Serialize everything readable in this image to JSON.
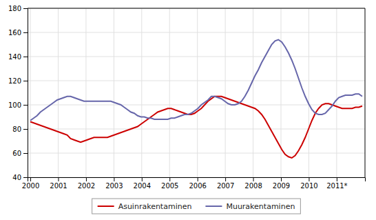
{
  "chart_data": {
    "type": "line",
    "x": [
      2000,
      2000.1204,
      2000.2407,
      2000.3611,
      2000.4815,
      2000.6019,
      2000.7222,
      2000.8426,
      2000.963,
      2001.0834,
      2001.2037,
      2001.3241,
      2001.4445,
      2001.5649,
      2001.6852,
      2001.8056,
      2001.926,
      2002.0464,
      2002.1667,
      2002.2871,
      2002.4075,
      2002.5278,
      2002.6482,
      2002.7686,
      2002.889,
      2003.0093,
      2003.1297,
      2003.2501,
      2003.3705,
      2003.4908,
      2003.6112,
      2003.7316,
      2003.852,
      2003.9723,
      2004.0927,
      2004.2131,
      2004.3335,
      2004.4538,
      2004.5742,
      2004.6946,
      2004.8149,
      2004.9353,
      2005.0557,
      2005.1761,
      2005.2964,
      2005.4168,
      2005.5372,
      2005.6576,
      2005.7779,
      2005.8983,
      2006.0187,
      2006.1391,
      2006.2594,
      2006.3798,
      2006.5002,
      2006.6206,
      2006.7409,
      2006.8613,
      2006.9817,
      2007.1021,
      2007.2224,
      2007.3428,
      2007.4632,
      2007.5835,
      2007.7039,
      2007.8243,
      2007.9447,
      2008.065,
      2008.1854,
      2008.3058,
      2008.4262,
      2008.5465,
      2008.6669,
      2008.7873,
      2008.9077,
      2009.028,
      2009.1484,
      2009.2688,
      2009.3892,
      2009.5095,
      2009.6299,
      2009.7503,
      2009.8706,
      2009.991,
      2010.1114,
      2010.2318,
      2010.3521,
      2010.4725,
      2010.5929,
      2010.7133,
      2010.8336,
      2010.954,
      2011.0744,
      2011.1948,
      2011.3151,
      2011.4355,
      2011.5559,
      2011.6763,
      2011.7966,
      2011.917
    ],
    "series": [
      {
        "name": "Asuinrakentaminen",
        "color": "#cc0000",
        "values": [
          86,
          85,
          84,
          83,
          82,
          81,
          80,
          79,
          78,
          77,
          76,
          75,
          72,
          71,
          70,
          69,
          70,
          71,
          72,
          73,
          73,
          73,
          73,
          73,
          74,
          75,
          76,
          77,
          78,
          79,
          80,
          81,
          82,
          84,
          86,
          88,
          90,
          92,
          94,
          95,
          96,
          97,
          97,
          96,
          95,
          94,
          93,
          92,
          92,
          93,
          95,
          97,
          100,
          103,
          105,
          107,
          107,
          107,
          106,
          105,
          104,
          103,
          102,
          101,
          100,
          99,
          98,
          97,
          95,
          92,
          88,
          83,
          78,
          73,
          68,
          63,
          59,
          57,
          56,
          58,
          62,
          67,
          73,
          80,
          87,
          93,
          97,
          100,
          101,
          101,
          100,
          99,
          98,
          97,
          97,
          97,
          97,
          98,
          98,
          99
        ]
      },
      {
        "name": "Muurakentaminen",
        "color": "#6666aa",
        "values": [
          87,
          89,
          91,
          94,
          96,
          98,
          100,
          102,
          104,
          105,
          106,
          107,
          107,
          106,
          105,
          104,
          103,
          103,
          103,
          103,
          103,
          103,
          103,
          103,
          103,
          102,
          101,
          100,
          98,
          96,
          94,
          93,
          91,
          90,
          90,
          89,
          89,
          88,
          88,
          88,
          88,
          88,
          89,
          89,
          90,
          91,
          92,
          92,
          93,
          95,
          97,
          100,
          102,
          104,
          107,
          107,
          106,
          105,
          103,
          101,
          100,
          100,
          101,
          103,
          107,
          112,
          118,
          124,
          129,
          135,
          140,
          145,
          150,
          153,
          154,
          152,
          148,
          143,
          137,
          130,
          122,
          114,
          107,
          101,
          96,
          93,
          92,
          92,
          93,
          96,
          99,
          103,
          106,
          107,
          108,
          108,
          108,
          109,
          109,
          107
        ]
      }
    ],
    "xlim": [
      1999.9,
      2012.017
    ],
    "xticks": [
      2000,
      2001,
      2002,
      2003,
      2004,
      2005,
      2006,
      2007,
      2008,
      2009,
      2010,
      {
        "value": 2011,
        "label": "2011*"
      }
    ],
    "ylim": [
      40,
      180
    ],
    "yticks": [
      40,
      60,
      80,
      100,
      120,
      140,
      160,
      180
    ],
    "grid": true,
    "legend": "bottom"
  }
}
